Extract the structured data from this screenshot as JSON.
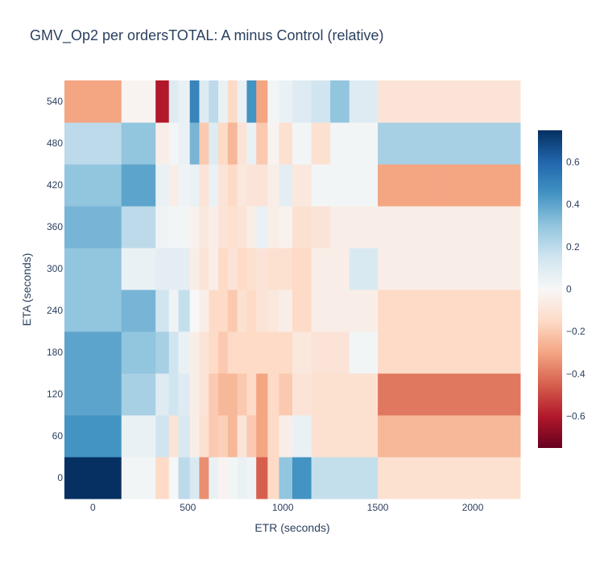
{
  "chart_data": {
    "type": "heatmap",
    "title": "GMV_Op2 per ordersTOTAL: A minus Control (relative)",
    "xlabel": "ETR (seconds)",
    "ylabel": "ETA (seconds)",
    "x_ticks": [
      0,
      500,
      1000,
      1500,
      2000
    ],
    "y_ticks": [
      0,
      60,
      120,
      180,
      240,
      300,
      360,
      420,
      480,
      540
    ],
    "x_edges": [
      -150,
      150,
      330,
      400,
      450,
      510,
      560,
      610,
      660,
      710,
      760,
      810,
      860,
      920,
      980,
      1050,
      1150,
      1250,
      1350,
      1500,
      1800,
      2250
    ],
    "y": [
      0,
      60,
      120,
      180,
      240,
      300,
      360,
      420,
      480,
      540
    ],
    "zmin": -0.75,
    "zmax": 0.75,
    "colorbar_ticks": [
      0.6,
      0.4,
      0.2,
      0,
      -0.2,
      -0.4,
      -0.6
    ],
    "colorscale": [
      "#67001f",
      "#b2182b",
      "#d6604d",
      "#f4a582",
      "#fddbc7",
      "#f7f7f7",
      "#d1e5f0",
      "#92c5de",
      "#4393c3",
      "#2166ac",
      "#053061"
    ],
    "z": [
      [
        0.75,
        0.02,
        -0.15,
        0.01,
        0.2,
        0.12,
        -0.35,
        0.05,
        -0.02,
        0.02,
        0.05,
        0.03,
        -0.45,
        -0.15,
        0.3,
        0.45,
        0.18,
        0.18,
        0.18,
        -0.12,
        -0.12
      ],
      [
        0.45,
        0.05,
        0.15,
        -0.1,
        0.12,
        -0.05,
        -0.12,
        -0.2,
        -0.18,
        -0.25,
        -0.1,
        -0.2,
        -0.3,
        -0.15,
        -0.05,
        0.05,
        -0.12,
        -0.12,
        -0.12,
        -0.25,
        -0.25
      ],
      [
        0.4,
        0.25,
        0.1,
        0.15,
        0.1,
        -0.05,
        -0.1,
        -0.2,
        -0.25,
        -0.25,
        -0.2,
        -0.15,
        -0.3,
        -0.15,
        -0.2,
        -0.1,
        -0.12,
        -0.12,
        -0.12,
        -0.4,
        -0.4
      ],
      [
        0.4,
        0.3,
        0.25,
        0.15,
        0.05,
        -0.05,
        -0.1,
        -0.15,
        -0.2,
        -0.15,
        -0.15,
        -0.15,
        -0.15,
        -0.15,
        -0.15,
        -0.08,
        -0.1,
        -0.1,
        0.02,
        -0.15,
        -0.15
      ],
      [
        0.3,
        0.35,
        0.15,
        0.03,
        0.18,
        0.0,
        -0.05,
        -0.15,
        -0.15,
        -0.2,
        -0.12,
        -0.15,
        -0.1,
        -0.08,
        -0.05,
        -0.15,
        -0.05,
        -0.05,
        -0.05,
        -0.15,
        -0.15
      ],
      [
        0.3,
        0.05,
        0.08,
        0.08,
        0.08,
        -0.05,
        -0.1,
        -0.05,
        -0.15,
        -0.1,
        -0.15,
        -0.12,
        -0.1,
        -0.12,
        -0.12,
        -0.15,
        -0.05,
        -0.05,
        0.12,
        -0.05,
        -0.05
      ],
      [
        0.35,
        0.2,
        0.03,
        0.02,
        0.02,
        -0.03,
        -0.08,
        -0.05,
        -0.1,
        -0.12,
        -0.1,
        -0.05,
        0.05,
        -0.05,
        -0.03,
        -0.12,
        -0.1,
        -0.05,
        -0.05,
        -0.05,
        -0.05
      ],
      [
        0.3,
        0.4,
        0.05,
        -0.05,
        0.03,
        0.05,
        -0.1,
        0.05,
        -0.1,
        -0.15,
        -0.08,
        -0.1,
        -0.1,
        -0.05,
        0.08,
        -0.08,
        0.02,
        0.02,
        0.02,
        -0.3,
        -0.3
      ],
      [
        0.2,
        0.3,
        -0.05,
        0.02,
        0.05,
        0.35,
        -0.2,
        0.1,
        -0.15,
        -0.25,
        -0.1,
        0.05,
        -0.2,
        -0.02,
        -0.12,
        0.02,
        -0.12,
        0.02,
        0.02,
        0.25,
        0.25
      ],
      [
        -0.3,
        -0.02,
        -0.6,
        0.1,
        0.05,
        0.5,
        0.1,
        0.2,
        0.05,
        -0.15,
        0.05,
        0.45,
        -0.3,
        0.02,
        0.05,
        0.1,
        0.15,
        0.3,
        0.1,
        -0.1,
        -0.1
      ]
    ]
  }
}
